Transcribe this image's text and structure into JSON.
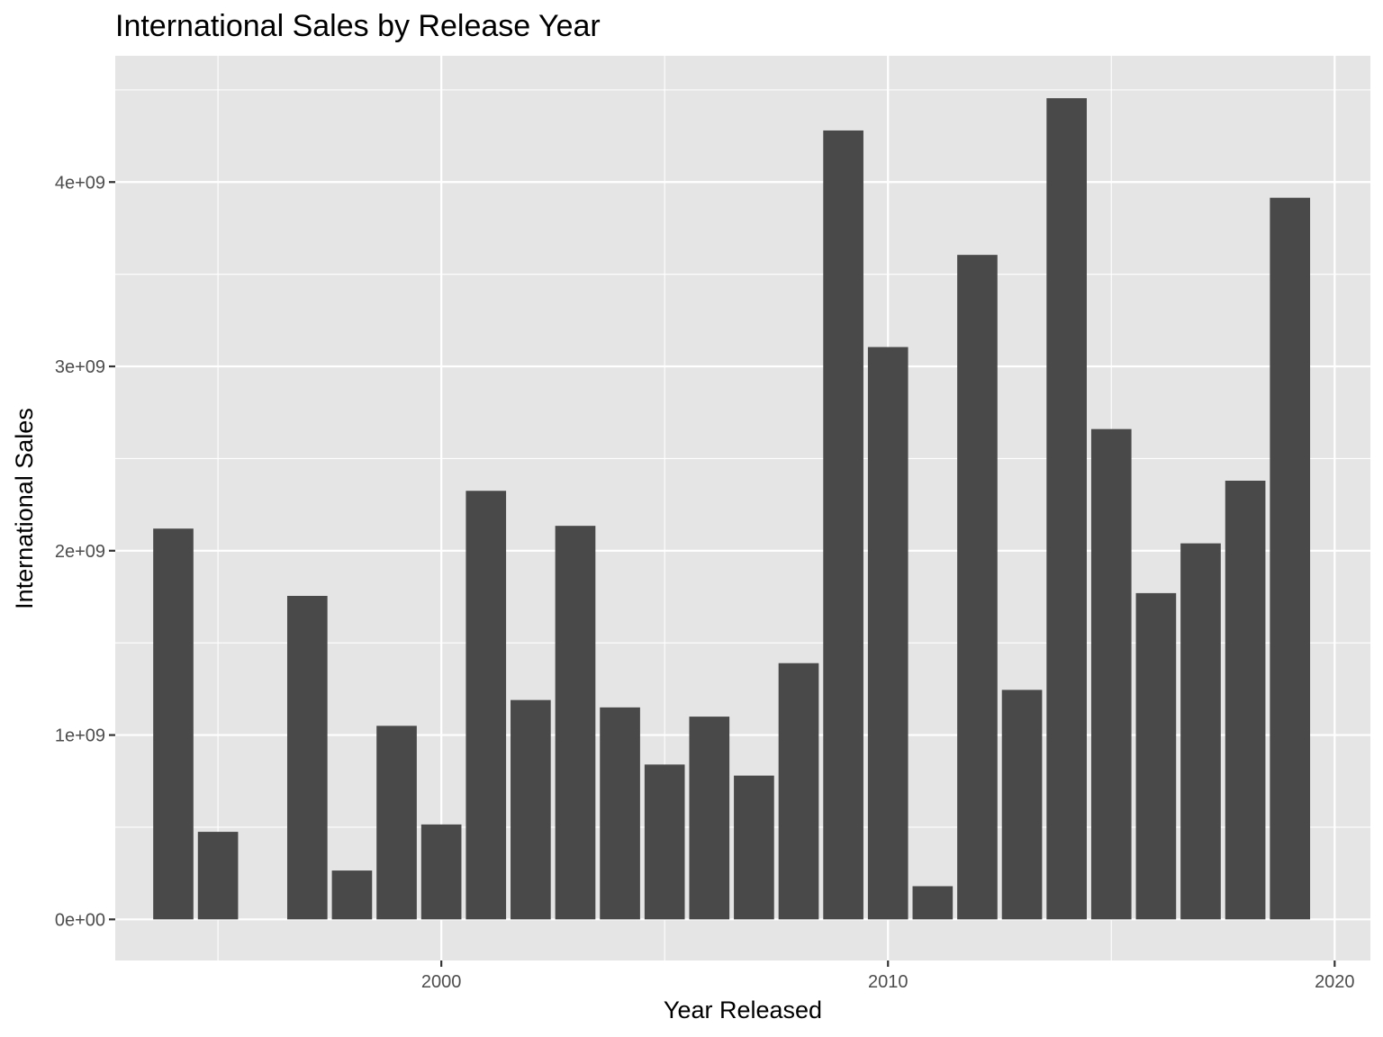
{
  "chart_data": {
    "type": "bar",
    "title": "International Sales by Release Year",
    "xlabel": "Year Released",
    "ylabel": "International Sales",
    "x": [
      1994,
      1995,
      1997,
      1998,
      1999,
      2000,
      2001,
      2002,
      2003,
      2004,
      2005,
      2006,
      2007,
      2008,
      2009,
      2010,
      2011,
      2012,
      2013,
      2014,
      2015,
      2016,
      2017,
      2018,
      2019
    ],
    "values": [
      2120000000,
      475000000,
      1755000000,
      265000000,
      1050000000,
      515000000,
      2325000000,
      1190000000,
      2135000000,
      1150000000,
      840000000,
      1100000000,
      780000000,
      1390000000,
      4280000000,
      3105000000,
      180000000,
      3605000000,
      1245000000,
      4455000000,
      2660000000,
      1770000000,
      2040000000,
      2380000000,
      3915000000
    ],
    "xlim": [
      1992.7,
      2020.8
    ],
    "ylim": [
      -223000000,
      4685000000
    ],
    "x_ticks": [
      2000,
      2010,
      2020
    ],
    "x_tick_labels": [
      "2000",
      "2010",
      "2020"
    ],
    "x_minor_ticks": [
      1995,
      2005,
      2015
    ],
    "y_ticks": [
      0,
      1000000000,
      2000000000,
      3000000000,
      4000000000
    ],
    "y_tick_labels": [
      "0e+00",
      "1e+09",
      "2e+09",
      "3e+09",
      "4e+09"
    ],
    "y_minor_ticks": [
      500000000,
      1500000000,
      2500000000,
      3500000000,
      4500000000
    ],
    "grid": true,
    "legend": "none",
    "colors": {
      "bar": "#494949",
      "panel": "#e5e5e5",
      "grid": "#ffffff",
      "text": "#000000",
      "tick_text": "#4d4d4d"
    }
  }
}
